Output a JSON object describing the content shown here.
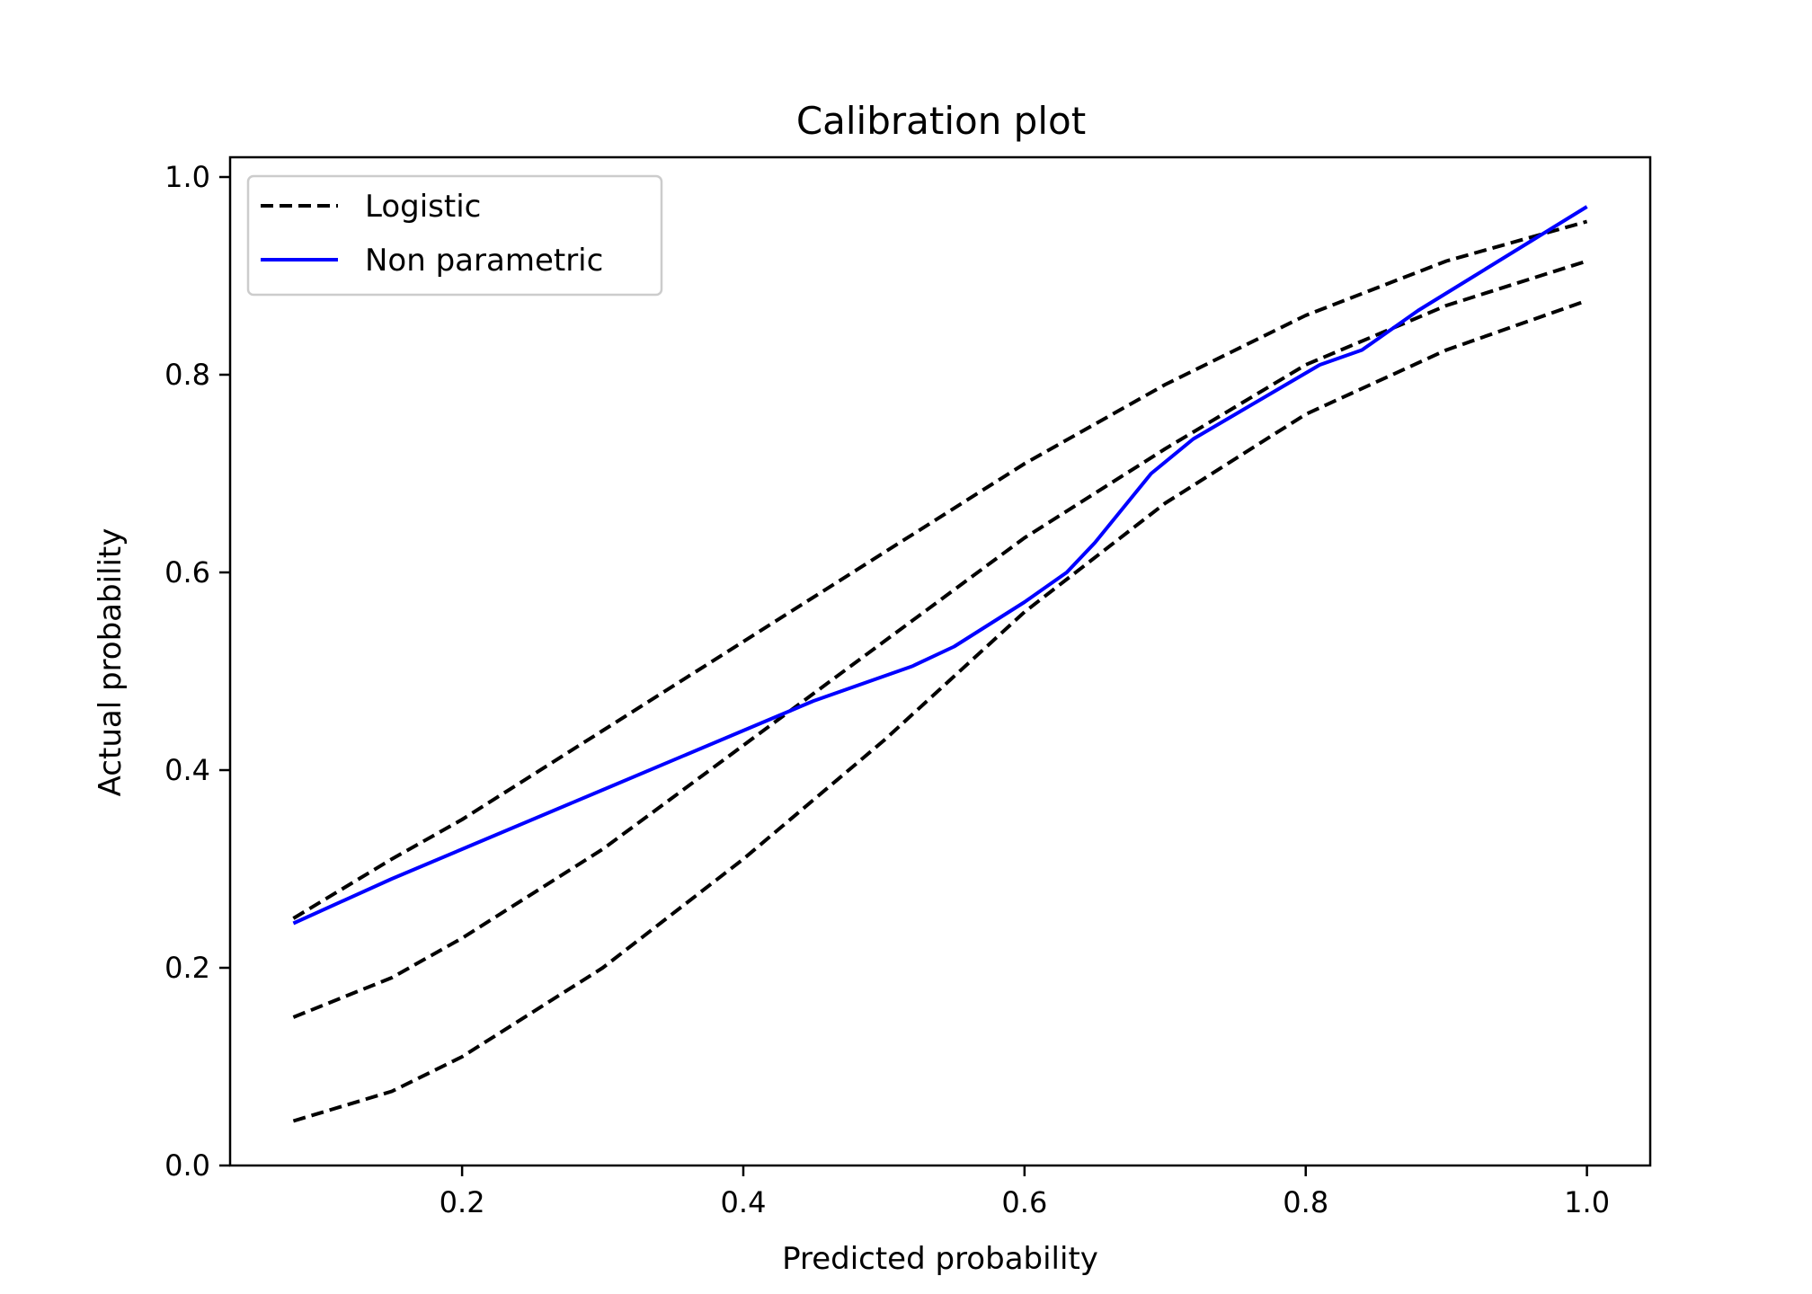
{
  "chart_data": {
    "type": "line",
    "title": "Calibration plot",
    "xlabel": "Predicted probability",
    "ylabel": "Actual probability",
    "xlim": [
      0.035,
      1.045
    ],
    "ylim": [
      0.0,
      1.02
    ],
    "xticks": [
      0.2,
      0.4,
      0.6,
      0.8,
      1.0
    ],
    "xtick_labels": [
      "0.2",
      "0.4",
      "0.6",
      "0.8",
      "1.0"
    ],
    "yticks": [
      0.0,
      0.2,
      0.4,
      0.6,
      0.8,
      1.0
    ],
    "ytick_labels": [
      "0.0",
      "0.2",
      "0.4",
      "0.6",
      "0.8",
      "1.0"
    ],
    "grid": false,
    "legend_position": "top-left",
    "legend": [
      {
        "label": "Logistic",
        "style": "dashed",
        "color": "#000000"
      },
      {
        "label": "Non parametric",
        "style": "solid",
        "color": "#0000ff"
      }
    ],
    "series": [
      {
        "name": "Logistic",
        "style": "dashed",
        "color": "#000000",
        "x": [
          0.08,
          0.15,
          0.2,
          0.3,
          0.4,
          0.5,
          0.6,
          0.7,
          0.8,
          0.9,
          1.0
        ],
        "y": [
          0.25,
          0.31,
          0.35,
          0.44,
          0.53,
          0.62,
          0.71,
          0.79,
          0.86,
          0.915,
          0.955
        ]
      },
      {
        "name": "",
        "style": "dashed",
        "color": "#000000",
        "x": [
          0.08,
          0.15,
          0.2,
          0.3,
          0.4,
          0.5,
          0.6,
          0.7,
          0.8,
          0.9,
          1.0
        ],
        "y": [
          0.15,
          0.19,
          0.23,
          0.32,
          0.425,
          0.53,
          0.635,
          0.725,
          0.81,
          0.87,
          0.915
        ]
      },
      {
        "name": "",
        "style": "dashed",
        "color": "#000000",
        "x": [
          0.08,
          0.15,
          0.2,
          0.3,
          0.4,
          0.5,
          0.6,
          0.7,
          0.8,
          0.9,
          1.0
        ],
        "y": [
          0.045,
          0.075,
          0.11,
          0.2,
          0.31,
          0.43,
          0.56,
          0.67,
          0.76,
          0.825,
          0.875
        ]
      },
      {
        "name": "Non parametric",
        "style": "solid",
        "color": "#0000ff",
        "x": [
          0.08,
          0.15,
          0.2,
          0.3,
          0.4,
          0.45,
          0.52,
          0.55,
          0.6,
          0.63,
          0.65,
          0.67,
          0.69,
          0.72,
          0.75,
          0.78,
          0.81,
          0.84,
          0.88,
          0.92,
          0.96,
          1.0
        ],
        "y": [
          0.245,
          0.29,
          0.32,
          0.38,
          0.44,
          0.47,
          0.505,
          0.525,
          0.57,
          0.6,
          0.63,
          0.665,
          0.7,
          0.735,
          0.76,
          0.785,
          0.81,
          0.825,
          0.865,
          0.9,
          0.935,
          0.97
        ]
      }
    ]
  }
}
